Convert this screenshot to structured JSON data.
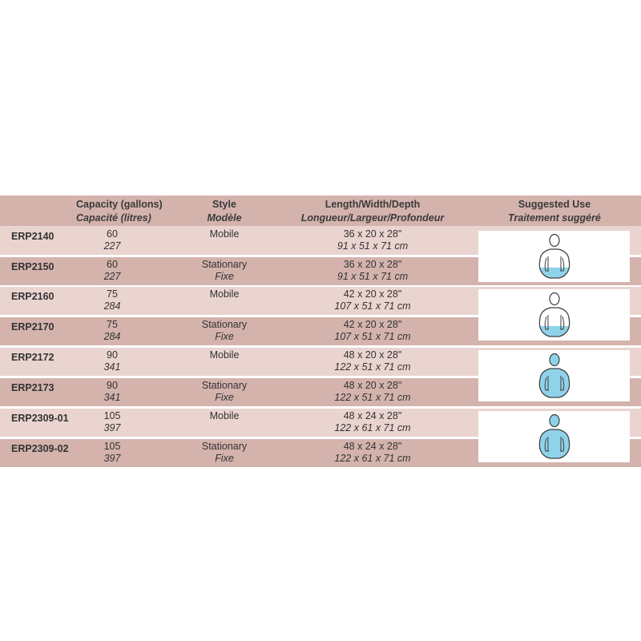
{
  "header": {
    "capacity_en": "Capacity (gallons)",
    "capacity_fr": "Capacité (litres)",
    "style_en": "Style",
    "style_fr": "Modèle",
    "dims_en": "Length/Width/Depth",
    "dims_fr": "Longueur/Largeur/Profondeur",
    "use_en": "Suggested Use",
    "use_fr": "Traitement suggéré"
  },
  "rows": [
    {
      "model": "ERP2140",
      "gallons": "60",
      "litres": "227",
      "style_en": "Mobile",
      "style_fr": "",
      "dims_in": "36 x 20 x 28\"",
      "dims_cm": "91 x 51 x 71 cm"
    },
    {
      "model": "ERP2150",
      "gallons": "60",
      "litres": "227",
      "style_en": "Stationary",
      "style_fr": "Fixe",
      "dims_in": "36 x 20 x 28\"",
      "dims_cm": "91 x 51 x 71 cm"
    },
    {
      "model": "ERP2160",
      "gallons": "75",
      "litres": "284",
      "style_en": "Mobile",
      "style_fr": "",
      "dims_in": "42 x 20 x 28\"",
      "dims_cm": "107 x 51 x 71 cm"
    },
    {
      "model": "ERP2170",
      "gallons": "75",
      "litres": "284",
      "style_en": "Stationary",
      "style_fr": "Fixe",
      "dims_in": "42 x 20 x 28\"",
      "dims_cm": "107 x 51 x 71 cm"
    },
    {
      "model": "ERP2172",
      "gallons": "90",
      "litres": "341",
      "style_en": "Mobile",
      "style_fr": "",
      "dims_in": "48 x 20 x 28\"",
      "dims_cm": "122 x 51 x 71 cm"
    },
    {
      "model": "ERP2173",
      "gallons": "90",
      "litres": "341",
      "style_en": "Stationary",
      "style_fr": "Fixe",
      "dims_in": "48 x 20 x 28\"",
      "dims_cm": "122 x 51 x 71 cm"
    },
    {
      "model": "ERP2309-01",
      "gallons": "105",
      "litres": "397",
      "style_en": "Mobile",
      "style_fr": "",
      "dims_in": "48 x 24 x 28\"",
      "dims_cm": "122 x 61 x 71 cm"
    },
    {
      "model": "ERP2309-02",
      "gallons": "105",
      "litres": "397",
      "style_en": "Stationary",
      "style_fr": "Fixe",
      "dims_in": "48 x 24 x 28\"",
      "dims_cm": "122 x 61 x 71 cm"
    }
  ],
  "suggested_use": [
    {
      "icon": "torso-lower-body-immersion-icon",
      "water_level": 0.35
    },
    {
      "icon": "torso-lower-body-immersion-icon",
      "water_level": 0.35
    },
    {
      "icon": "full-body-immersion-icon",
      "water_level": 1.0
    },
    {
      "icon": "full-body-immersion-icon",
      "water_level": 1.0
    }
  ],
  "colors": {
    "header_bg": "#d4b3ad",
    "row_light": "#ead4cf",
    "row_dark": "#d4b3ad",
    "water": "#8fd3ea",
    "outline": "#3d3d3d"
  }
}
